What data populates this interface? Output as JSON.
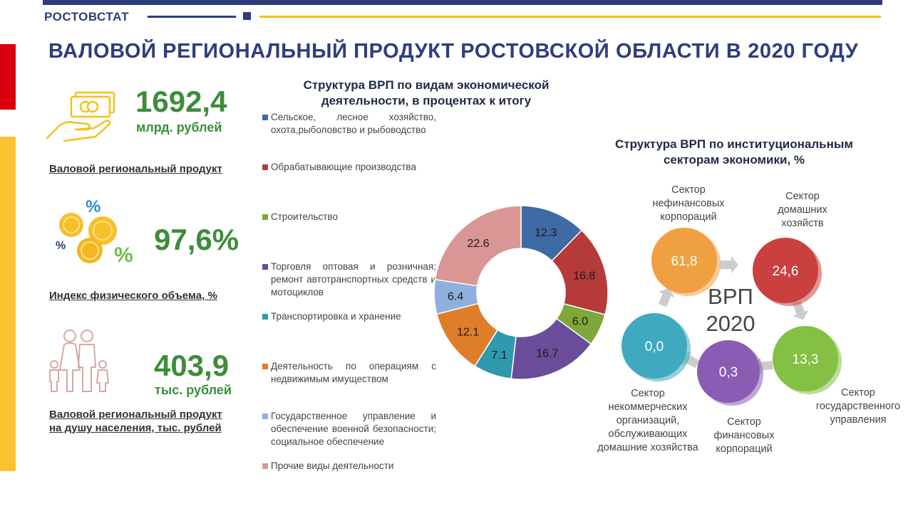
{
  "header": {
    "brand": "РОСТОВСТАТ",
    "title": "ВАЛОВОЙ РЕГИОНАЛЬНЫЙ ПРОДУКТ РОСТОВСКОЙ ОБЛАСТИ В 2020 ГОДУ"
  },
  "kpis": [
    {
      "value": "1692,4",
      "unit": "млрд. рублей",
      "label": "Валовой региональный продукт",
      "icon": "money-hand-icon"
    },
    {
      "value": "97,6%",
      "unit": "",
      "label": "Индекс физического объема, %",
      "icon": "coins-percent-icon"
    },
    {
      "value": "403,9",
      "unit": "тыс. рублей",
      "label_line1": "Валовой региональный продукт",
      "label_line2": "на душу населения, тыс. рублей",
      "icon": "family-icon"
    }
  ],
  "donut": {
    "title_line1": "Структура ВРП по видам экономической",
    "title_line2": "деятельности, в процентах к итогу"
  },
  "sectors": {
    "title_line1": "Структура ВРП по институциональным",
    "title_line2": "секторам экономики, %",
    "center_line1": "ВРП",
    "center_line2": "2020",
    "items": [
      {
        "label": "Сектор нефинансовых корпораций",
        "value": "61,8",
        "color": "#f0a040"
      },
      {
        "label": "Сектор домашних хозяйств",
        "value": "24,6",
        "color": "#c9403e"
      },
      {
        "label": "Сектор государственного управления",
        "value": "13,3",
        "color": "#84c043"
      },
      {
        "label": "Сектор финансовых корпораций",
        "value": "0,3",
        "color": "#8a5cb4"
      },
      {
        "label": "Сектор некоммерческих организаций, обслуживающих домашние хозяйства",
        "value": "0,0",
        "color": "#3ea9bf"
      }
    ]
  },
  "chart_data": [
    {
      "type": "pie",
      "title": "Структура ВРП по видам экономической деятельности, в процентах к итогу",
      "categories": [
        "Сельское, лесное хозяйство, охота,рыболовство и рыбоводство",
        "Обрабатывающие производства",
        "Строительство",
        "Торговля оптовая и розничная; ремонт автотранспортных средств и мотоциклов",
        "Транспортировка и хранение",
        "Деятельность по операциям с недвижимым имуществом",
        "Государственное управление и обеспечение военной безопасности; социальное обеспечение",
        "Прочие виды деятельности"
      ],
      "values": [
        12.3,
        16.8,
        6.0,
        16.7,
        7.1,
        12.1,
        6.4,
        22.6
      ],
      "labels": [
        "12.3",
        "16.8",
        "6.0",
        "16.7",
        "7.1",
        "12.1",
        "6.4",
        "22.6"
      ],
      "colors": [
        "#3e6aa6",
        "#b63a3a",
        "#7fa83a",
        "#6b4c9a",
        "#2f9aad",
        "#e07d2a",
        "#8fb0de",
        "#d99694"
      ],
      "legend_position": "left"
    },
    {
      "type": "pie",
      "title": "Структура ВРП по институциональным секторам экономики, %",
      "categories": [
        "Сектор нефинансовых корпораций",
        "Сектор домашних хозяйств",
        "Сектор государственного управления",
        "Сектор финансовых корпораций",
        "Сектор некоммерческих организаций, обслуживающих домашние хозяйства"
      ],
      "values": [
        61.8,
        24.6,
        13.3,
        0.3,
        0.0
      ]
    }
  ]
}
